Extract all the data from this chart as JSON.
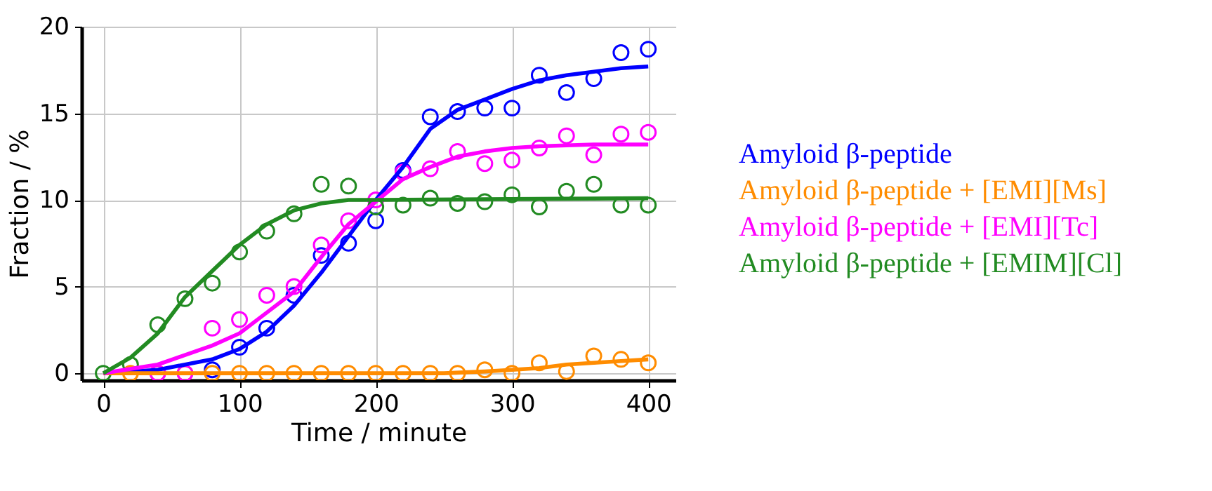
{
  "chart_data": {
    "type": "scatter",
    "xlabel": "Time / minute",
    "ylabel": "Fraction / %",
    "xlim": [
      -16,
      420
    ],
    "ylim": [
      -0.4,
      20
    ],
    "xticks": [
      0,
      100,
      200,
      300,
      400
    ],
    "yticks": [
      0,
      5,
      10,
      15,
      20
    ],
    "grid": true,
    "legend": "right",
    "marker": "circle",
    "x": [
      0,
      20,
      40,
      60,
      80,
      100,
      120,
      140,
      160,
      180,
      200,
      220,
      240,
      260,
      280,
      300,
      320,
      340,
      360,
      380,
      400
    ],
    "series": [
      {
        "name": "Amyloid β-peptide",
        "color": "#0000ff",
        "values": [
          null,
          null,
          null,
          null,
          0.2,
          1.5,
          2.6,
          4.5,
          6.8,
          7.5,
          8.8,
          11.7,
          14.8,
          15.1,
          15.3,
          15.3,
          17.2,
          16.2,
          17.0,
          18.5,
          18.7
        ]
      },
      {
        "name": "Amyloid β-peptide + [EMI][Ms]",
        "color": "#ff8c00",
        "values": [
          null,
          0,
          0,
          0,
          0,
          0,
          0,
          0,
          0,
          0,
          0,
          0,
          0,
          0,
          0.2,
          0,
          0.6,
          0.1,
          1.0,
          0.8,
          0.6
        ]
      },
      {
        "name": "Amyloid β-peptide + [EMI][Tc]",
        "color": "#ff00ff",
        "values": [
          null,
          null,
          0,
          0,
          2.6,
          3.1,
          4.5,
          5.0,
          7.4,
          8.8,
          10.0,
          11.6,
          11.8,
          12.8,
          12.1,
          12.3,
          13.0,
          13.7,
          12.6,
          13.8,
          13.9
        ]
      },
      {
        "name": "Amyloid β-peptide + [EMIM][Cl]",
        "color": "#228b22",
        "values": [
          0,
          0.5,
          2.8,
          4.3,
          5.2,
          7.0,
          8.2,
          9.2,
          10.9,
          10.8,
          9.6,
          9.7,
          10.1,
          9.8,
          9.9,
          10.3,
          9.6,
          10.5,
          10.9,
          9.7,
          9.7
        ]
      },
      {
        "type": "line",
        "marker": "none",
        "color": "#0000ff",
        "x": [
          0,
          40,
          80,
          100,
          120,
          140,
          160,
          180,
          200,
          220,
          240,
          260,
          280,
          300,
          320,
          340,
          360,
          380,
          400
        ],
        "values": [
          0,
          0.2,
          0.8,
          1.4,
          2.4,
          3.9,
          5.8,
          7.9,
          10.0,
          11.9,
          14.1,
          15.2,
          15.8,
          16.4,
          16.9,
          17.2,
          17.4,
          17.6,
          17.7
        ]
      },
      {
        "type": "line",
        "marker": "none",
        "color": "#ff8c00",
        "x": [
          0,
          250,
          280,
          300,
          320,
          340,
          360,
          380,
          400
        ],
        "values": [
          0,
          0,
          0.1,
          0.2,
          0.3,
          0.5,
          0.6,
          0.7,
          0.8
        ]
      },
      {
        "type": "line",
        "marker": "none",
        "color": "#ff00ff",
        "x": [
          0,
          40,
          80,
          100,
          120,
          140,
          160,
          180,
          200,
          220,
          240,
          260,
          280,
          300,
          320,
          360,
          400
        ],
        "values": [
          0,
          0.5,
          1.6,
          2.3,
          3.5,
          4.7,
          6.7,
          8.6,
          9.9,
          11.2,
          11.9,
          12.5,
          12.8,
          13.0,
          13.1,
          13.2,
          13.2
        ]
      },
      {
        "type": "line",
        "marker": "none",
        "color": "#228b22",
        "x": [
          0,
          20,
          40,
          60,
          80,
          100,
          120,
          140,
          160,
          180,
          200,
          400
        ],
        "values": [
          0,
          0.9,
          2.3,
          4.4,
          5.9,
          7.4,
          8.6,
          9.4,
          9.8,
          10.0,
          10.0,
          10.1
        ]
      }
    ]
  }
}
